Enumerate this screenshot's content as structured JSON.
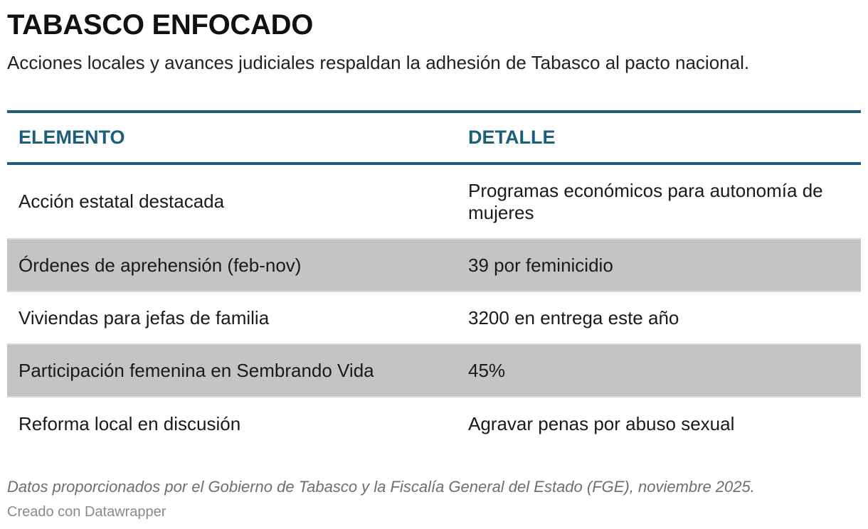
{
  "chart_data": {
    "type": "table",
    "title": "TABASCO ENFOCADO",
    "subtitle": "Acciones locales y avances judiciales respaldan la adhesión de Tabasco al pacto nacional.",
    "columns": [
      "ELEMENTO",
      "DETALLE"
    ],
    "rows": [
      [
        "Acción estatal destacada",
        "Programas económicos para autonomía de mujeres"
      ],
      [
        "Órdenes de aprehensión (feb-nov)",
        "39 por feminicidio"
      ],
      [
        "Viviendas para jefas de familia",
        "3200 en entrega este año"
      ],
      [
        "Participación femenina en Sembrando Vida",
        "45%"
      ],
      [
        "Reforma local en discusión",
        "Agravar penas por abuso sexual"
      ]
    ],
    "notes": "Datos proporcionados por el Gobierno de Tabasco y la Fiscalía General del Estado (FGE), noviembre 2025.",
    "credit": "Creado con Datawrapper"
  },
  "colors": {
    "header_accent": "#1c5f7a",
    "shaded_row": "#c4c4c4"
  }
}
